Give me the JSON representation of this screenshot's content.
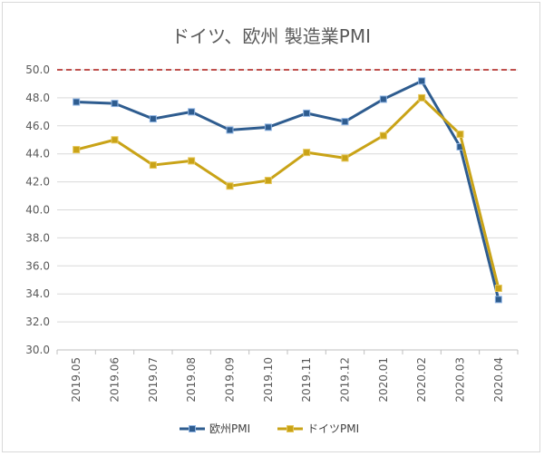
{
  "chart_data": {
    "type": "line",
    "title": "ドイツ、欧州 製造業PMI",
    "categories": [
      "2019.05",
      "2019.06",
      "2019.07",
      "2019.08",
      "2019.09",
      "2019.10",
      "2019.11",
      "2019.12",
      "2020.01",
      "2020.02",
      "2020.03",
      "2020.04"
    ],
    "series": [
      {
        "name": "欧州PMI",
        "color": "#2e5c8f",
        "marker": "square",
        "values": [
          47.7,
          47.6,
          46.5,
          47.0,
          45.7,
          45.9,
          46.9,
          46.3,
          47.9,
          49.2,
          44.5,
          33.6
        ]
      },
      {
        "name": "ドイツPMI",
        "color": "#c9a317",
        "marker": "square",
        "values": [
          44.3,
          45.0,
          43.2,
          43.5,
          41.7,
          42.1,
          44.1,
          43.7,
          45.3,
          48.0,
          45.4,
          34.4
        ]
      }
    ],
    "reference_line": {
      "value": 50.0,
      "color": "#c0504d",
      "style": "dashed"
    },
    "ylim": [
      30.0,
      50.0
    ],
    "y_ticks": [
      "30.0",
      "32.0",
      "34.0",
      "36.0",
      "38.0",
      "40.0",
      "42.0",
      "44.0",
      "46.0",
      "48.0",
      "50.0"
    ],
    "grid": true,
    "legend_position": "bottom",
    "xlabel": "",
    "ylabel": ""
  }
}
